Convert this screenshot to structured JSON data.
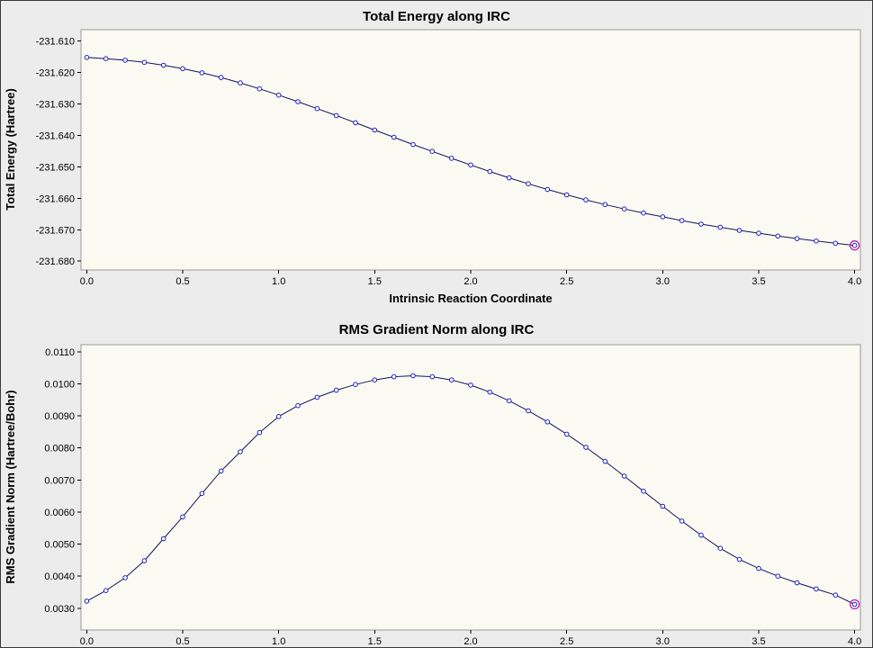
{
  "colors": {
    "window_bg": "#ECECEC",
    "plot_bg": "#FAFAF2",
    "plot_border": "#999999",
    "line": "#14145A",
    "marker_stroke": "#2020C0",
    "marker_fill": "#FFFFFF",
    "highlight": "#C020C0",
    "text": "#000000"
  },
  "chart_data": [
    {
      "type": "line",
      "title": "Total Energy along IRC",
      "xlabel": "Intrinsic Reaction Coordinate",
      "ylabel": "Total Energy (Hartree)",
      "xlim": [
        -0.03,
        4.03
      ],
      "ylim": [
        -231.6828,
        -231.6064
      ],
      "xtick_values": [
        0.0,
        0.5,
        1.0,
        1.5,
        2.0,
        2.5,
        3.0,
        3.5,
        4.0
      ],
      "xtick_labels": [
        "0.0",
        "0.5",
        "1.0",
        "1.5",
        "2.0",
        "2.5",
        "3.0",
        "3.5",
        "4.0"
      ],
      "ytick_values": [
        -231.61,
        -231.62,
        -231.63,
        -231.64,
        -231.65,
        -231.66,
        -231.67,
        -231.68
      ],
      "ytick_labels": [
        "-231.610",
        "-231.620",
        "-231.630",
        "-231.640",
        "-231.650",
        "-231.660",
        "-231.670",
        "-231.680"
      ],
      "legend": false,
      "grid": false,
      "x": [
        0.0,
        0.1,
        0.2,
        0.3,
        0.4,
        0.5,
        0.6,
        0.7,
        0.8,
        0.9,
        1.0,
        1.1,
        1.2,
        1.3,
        1.4,
        1.5,
        1.6,
        1.7,
        1.8,
        1.9,
        2.0,
        2.1,
        2.2,
        2.3,
        2.4,
        2.5,
        2.6,
        2.7,
        2.8,
        2.9,
        3.0,
        3.1,
        3.2,
        3.3,
        3.4,
        3.5,
        3.6,
        3.7,
        3.8,
        3.9,
        4.0
      ],
      "y": [
        -231.6152,
        -231.6156,
        -231.6161,
        -231.6168,
        -231.6177,
        -231.6188,
        -231.6201,
        -231.6216,
        -231.6233,
        -231.6252,
        -231.6272,
        -231.6293,
        -231.6315,
        -231.6337,
        -231.636,
        -231.6383,
        -231.6406,
        -231.6429,
        -231.6451,
        -231.6473,
        -231.6494,
        -231.6515,
        -231.6535,
        -231.6554,
        -231.6572,
        -231.6589,
        -231.6605,
        -231.662,
        -231.6634,
        -231.6647,
        -231.6659,
        -231.6671,
        -231.6682,
        -231.6692,
        -231.6702,
        -231.6711,
        -231.672,
        -231.6728,
        -231.6736,
        -231.6743,
        -231.675
      ],
      "highlight_index": 40
    },
    {
      "type": "line",
      "title": "RMS Gradient Norm along IRC",
      "ylabel": "RMS Gradient Norm (Hartree/Bohr)",
      "xlim": [
        -0.03,
        4.03
      ],
      "ylim": [
        0.00232,
        0.01122
      ],
      "xtick_values": [
        0.0,
        0.5,
        1.0,
        1.5,
        2.0,
        2.5,
        3.0,
        3.5,
        4.0
      ],
      "xtick_labels": [
        "0.0",
        "0.5",
        "1.0",
        "1.5",
        "2.0",
        "2.5",
        "3.0",
        "3.5",
        "4.0"
      ],
      "ytick_values": [
        0.011,
        0.01,
        0.009,
        0.008,
        0.007,
        0.006,
        0.005,
        0.004,
        0.003
      ],
      "ytick_labels": [
        "0.0110",
        "0.0100",
        "0.0090",
        "0.0080",
        "0.0070",
        "0.0060",
        "0.0050",
        "0.0040",
        "0.0030"
      ],
      "legend": false,
      "grid": false,
      "x": [
        0.0,
        0.1,
        0.2,
        0.3,
        0.4,
        0.5,
        0.6,
        0.7,
        0.8,
        0.9,
        1.0,
        1.1,
        1.2,
        1.3,
        1.4,
        1.5,
        1.6,
        1.7,
        1.8,
        1.9,
        2.0,
        2.1,
        2.2,
        2.3,
        2.4,
        2.5,
        2.6,
        2.7,
        2.8,
        2.9,
        3.0,
        3.1,
        3.2,
        3.3,
        3.4,
        3.5,
        3.6,
        3.7,
        3.8,
        3.9,
        4.0
      ],
      "y": [
        0.00322,
        0.00355,
        0.00395,
        0.00448,
        0.00517,
        0.00585,
        0.00658,
        0.00728,
        0.00788,
        0.00848,
        0.00898,
        0.00932,
        0.00958,
        0.0098,
        0.00998,
        0.01012,
        0.01022,
        0.01025,
        0.01022,
        0.01012,
        0.00996,
        0.00974,
        0.00947,
        0.00916,
        0.00881,
        0.00843,
        0.00802,
        0.00758,
        0.00712,
        0.00665,
        0.00618,
        0.00572,
        0.00528,
        0.00487,
        0.00452,
        0.00424,
        0.004,
        0.00379,
        0.0036,
        0.00341,
        0.00312
      ],
      "highlight_index": 40
    }
  ]
}
